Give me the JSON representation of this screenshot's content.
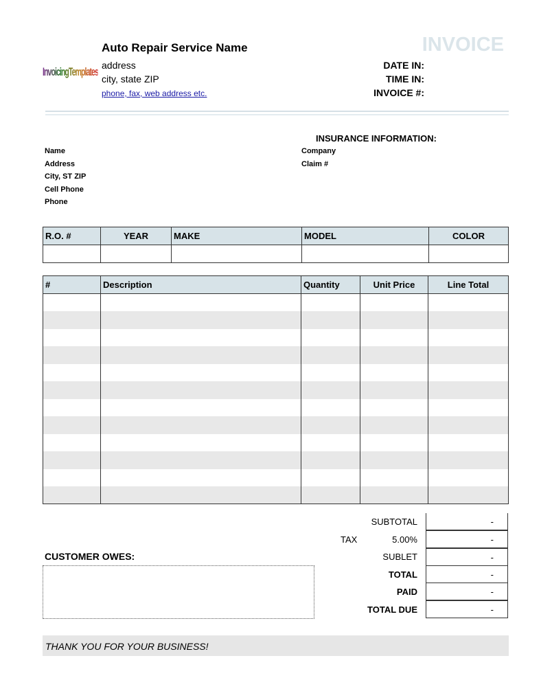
{
  "header": {
    "logo_text": "InvoicingTemplates",
    "company_name": "Auto Repair Service Name",
    "address": "address",
    "city": "city, state ZIP",
    "contact_link": "phone, fax, web address etc.",
    "doc_title": "INVOICE",
    "date_in": "DATE IN:",
    "time_in": "TIME IN:",
    "invoice_no": "INVOICE #:"
  },
  "customer": {
    "name": "Name",
    "address": "Address",
    "city": "City, ST ZIP",
    "cell": "Cell Phone",
    "phone": "Phone"
  },
  "insurance": {
    "title": "INSURANCE INFORMATION:",
    "company": "Company",
    "claim": "Claim #"
  },
  "vehicle": {
    "headers": [
      "R.O. #",
      "YEAR",
      "MAKE",
      "MODEL",
      "COLOR"
    ]
  },
  "items": {
    "headers": [
      "#",
      "Description",
      "Quantity",
      "Unit Price",
      "Line Total"
    ],
    "row_count": 12
  },
  "totals": {
    "subtotal_label": "SUBTOTAL",
    "subtotal": "-",
    "tax_label": "TAX",
    "tax_rate": "5.00%",
    "tax": "-",
    "sublet_label": "SUBLET",
    "sublet": "-",
    "total_label": "TOTAL",
    "total": "-",
    "paid_label": "PAID",
    "paid": "-",
    "due_label": "TOTAL DUE",
    "due": "-"
  },
  "customer_owes": "CUSTOMER OWES:",
  "footer": "THANK YOU FOR YOUR BUSINESS!"
}
